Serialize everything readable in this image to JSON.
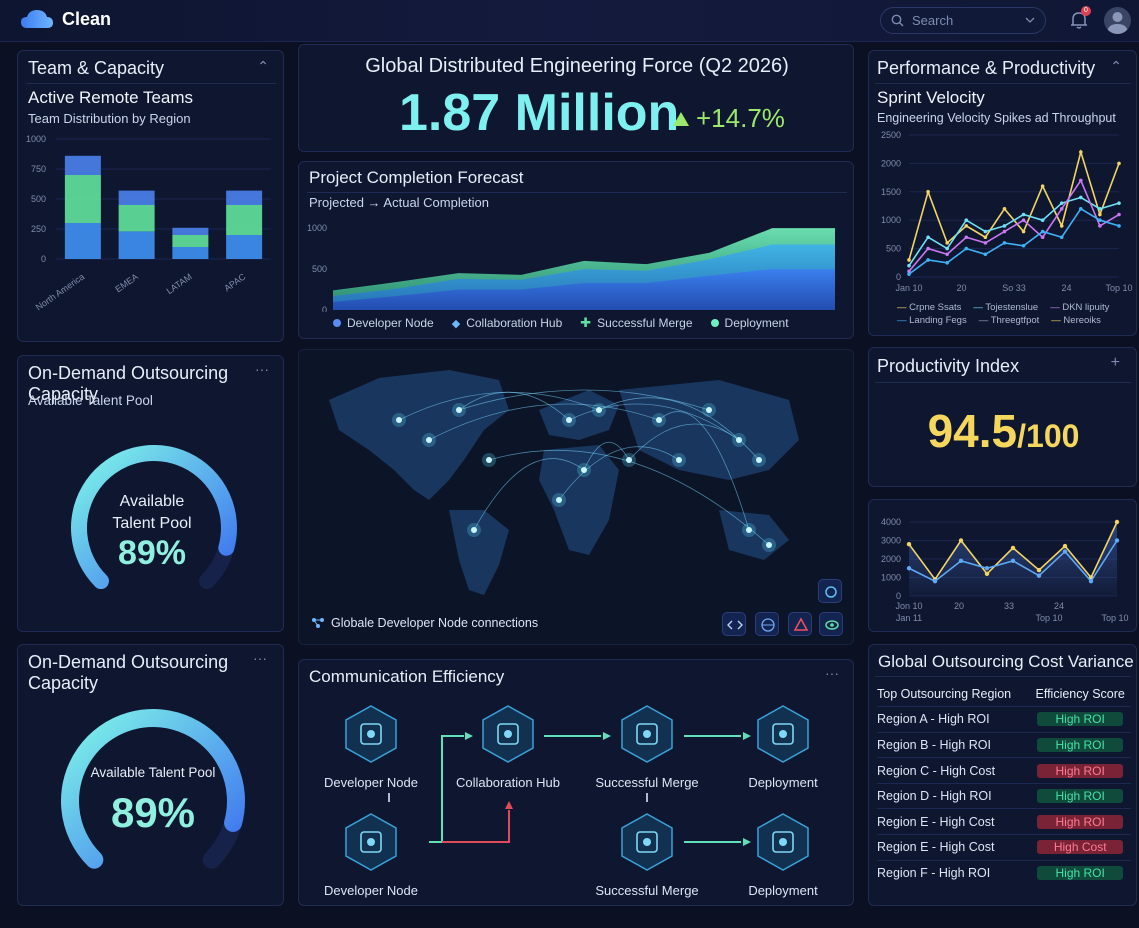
{
  "app": {
    "name": "Clean"
  },
  "search": {
    "placeholder": "Search"
  },
  "notifications": {
    "count": "0"
  },
  "team": {
    "title": "Team & Capacity",
    "subtitle": "Active Remote Teams",
    "caption": "Team Distribution by Region",
    "chart_data": {
      "type": "bar",
      "categories": [
        "North America",
        "EMEA",
        "LATAM",
        "APAC"
      ],
      "series": [
        {
          "values": [
            300,
            230,
            100,
            200
          ]
        },
        {
          "values": [
            400,
            220,
            100,
            250
          ]
        },
        {
          "values": [
            160,
            120,
            60,
            120
          ]
        }
      ],
      "yticks": [
        "1000",
        "750",
        "500",
        "250",
        "0"
      ],
      "ylim": [
        0,
        1000
      ],
      "colors": [
        "#3d8ff0",
        "#5fe09a",
        "#4a7fe8"
      ]
    }
  },
  "outsourcing1": {
    "title": "On-Demand Outsourcing Capacity",
    "caption": "Available Talent Pool",
    "gauge_label_1": "Available",
    "gauge_label_2": "Talent Pool",
    "value": "89%",
    "fraction": 0.89
  },
  "outsourcing2": {
    "title": "On-Demand Outsourcing Capacity",
    "gauge_label": "Available Talent Pool",
    "value": "89%",
    "fraction": 0.89
  },
  "headline": {
    "title": "Global Distributed Engineering Force (Q2 2026)",
    "value": "1.87 Million",
    "change": "+14.7%"
  },
  "forecast": {
    "title": "Project Completion Forecast",
    "caption": "Projected → Actual Completion",
    "legend": [
      "Developer Node",
      "Collaboration Hub",
      "Successful Merge",
      "Deployment"
    ],
    "chart_data": {
      "type": "area",
      "x": [
        1,
        2,
        3,
        4,
        5,
        6,
        7,
        8,
        9
      ],
      "series": [
        {
          "values": [
            240,
            340,
            450,
            430,
            600,
            560,
            700,
            1000,
            1000
          ]
        },
        {
          "values": [
            170,
            260,
            380,
            370,
            500,
            480,
            620,
            800,
            800
          ]
        },
        {
          "values": [
            100,
            170,
            250,
            250,
            330,
            330,
            420,
            500,
            500
          ]
        }
      ],
      "yticks": [
        "1000",
        "500",
        "0"
      ],
      "ylim": [
        0,
        1100
      ]
    }
  },
  "map": {
    "label": "Globale Developer Node connections"
  },
  "comm": {
    "title": "Communication Efficiency",
    "nodes": [
      "Developer Node",
      "Collaboration Hub",
      "Successful Merge",
      "Deployment",
      "Developer Node",
      "Successful Merge",
      "Deployment"
    ]
  },
  "performance": {
    "title": "Performance & Productivity",
    "subtitle": "Sprint Velocity",
    "caption": "Engineering Velocity Spikes ad Throughput",
    "yticks": [
      "2500",
      "2000",
      "1500",
      "1000",
      "500",
      "0"
    ],
    "xticks": [
      "Jan 10",
      "20",
      "So 33",
      "24",
      "Top 10"
    ],
    "legend": [
      "Crpne Ssats",
      "Tojestenslue",
      "DKN lipuity",
      "Landing Fegs",
      "Threegtfpot",
      "Nereoiks"
    ],
    "chart_data": {
      "type": "line",
      "ylim": [
        0,
        2500
      ],
      "series": [
        {
          "color": "#f2d465",
          "values": [
            300,
            1500,
            600,
            900,
            700,
            1200,
            800,
            1600,
            900,
            2200,
            1100,
            2000
          ]
        },
        {
          "color": "#6fe0f5",
          "values": [
            200,
            700,
            500,
            1000,
            800,
            900,
            1100,
            1000,
            1300,
            1400,
            1200,
            1300
          ]
        },
        {
          "color": "#c878f0",
          "values": [
            100,
            500,
            400,
            700,
            600,
            800,
            1000,
            700,
            1200,
            1700,
            900,
            1100
          ]
        },
        {
          "color": "#3fb2f7",
          "values": [
            50,
            300,
            250,
            500,
            400,
            600,
            550,
            800,
            700,
            1200,
            1000,
            900
          ]
        }
      ]
    }
  },
  "productivity": {
    "title": "Productivity Index",
    "value": "94.5",
    "suffix": "/100"
  },
  "mini_chart": {
    "yticks": [
      "4000",
      "3000",
      "2000",
      "1000",
      "0"
    ],
    "xticks_1": [
      "Jon 10",
      "20",
      "33",
      "24"
    ],
    "xticks_2": [
      "Jan 11",
      "Top 10",
      "Top 10"
    ],
    "chart_data": {
      "type": "line",
      "ylim": [
        0,
        4000
      ],
      "series": [
        {
          "color": "#f2d465",
          "values": [
            2800,
            900,
            3000,
            1200,
            2600,
            1400,
            2700,
            1000,
            4000
          ]
        },
        {
          "color": "#5fa8f5",
          "values": [
            1500,
            800,
            1900,
            1500,
            1900,
            1100,
            2400,
            800,
            3000
          ]
        }
      ]
    }
  },
  "cost": {
    "title": "Global Outsourcing Cost Variance",
    "col1": "Top Outsourcing Region",
    "col2": "Efficiency Score",
    "rows": [
      {
        "region": "Region A - High ROI",
        "score": "High ROI",
        "kind": "roi"
      },
      {
        "region": "Region B - High ROI",
        "score": "High ROI",
        "kind": "roi"
      },
      {
        "region": "Region C - High Cost",
        "score": "High ROI",
        "kind": "cost"
      },
      {
        "region": "Region D - High ROI",
        "score": "High ROI",
        "kind": "roi"
      },
      {
        "region": "Region E - High Cost",
        "score": "High ROI",
        "kind": "cost"
      },
      {
        "region": "Region E - High Cost",
        "score": "High Cost",
        "kind": "cost"
      },
      {
        "region": "Region F - High ROI",
        "score": "High ROI",
        "kind": "roi"
      }
    ]
  }
}
